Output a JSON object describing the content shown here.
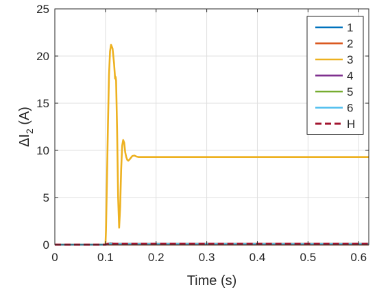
{
  "chart_data": {
    "type": "line",
    "xlabel": "Time (s)",
    "ylabel_parts": {
      "prefix": "ΔI",
      "subscript": "2",
      "suffix": " (A)"
    },
    "xlim": [
      0,
      0.62
    ],
    "ylim": [
      0,
      25
    ],
    "xticks": [
      0,
      0.1,
      0.2,
      0.3,
      0.4,
      0.5,
      0.6
    ],
    "xtick_labels": [
      "0",
      "0.1",
      "0.2",
      "0.3",
      "0.4",
      "0.5",
      "0.6"
    ],
    "yticks": [
      0,
      5,
      10,
      15,
      20,
      25
    ],
    "ytick_labels": [
      "0",
      "5",
      "10",
      "15",
      "20",
      "25"
    ],
    "grid": true,
    "legend_position": "top-right",
    "series": [
      {
        "name": "1",
        "color": "#0072BD",
        "style": "solid",
        "x": [
          0,
          0.1,
          0.62
        ],
        "y": [
          0,
          0,
          0
        ]
      },
      {
        "name": "2",
        "color": "#D95319",
        "style": "solid",
        "x": [
          0,
          0.1,
          0.62
        ],
        "y": [
          0,
          0,
          0
        ]
      },
      {
        "name": "3",
        "color": "#EDB120",
        "style": "solid",
        "x": [
          0,
          0.1,
          0.101,
          0.103,
          0.105,
          0.107,
          0.109,
          0.111,
          0.114,
          0.117,
          0.119,
          0.12,
          0.121,
          0.123,
          0.125,
          0.127,
          0.129,
          0.131,
          0.133,
          0.135,
          0.137,
          0.139,
          0.141,
          0.143,
          0.145,
          0.147,
          0.15,
          0.153,
          0.157,
          0.161,
          0.165,
          0.17,
          0.175,
          0.18,
          0.2,
          0.3,
          0.4,
          0.5,
          0.62
        ],
        "y": [
          0,
          0,
          1.5,
          7,
          13,
          18,
          20.5,
          21.2,
          20.8,
          19.2,
          17.6,
          17.8,
          17.4,
          12,
          5,
          1.8,
          4,
          8,
          10.5,
          11.1,
          10.8,
          9.8,
          9.3,
          9.0,
          8.9,
          9.0,
          9.2,
          9.4,
          9.45,
          9.35,
          9.3,
          9.3,
          9.3,
          9.3,
          9.3,
          9.3,
          9.3,
          9.3,
          9.3
        ]
      },
      {
        "name": "4",
        "color": "#7E2F8E",
        "style": "solid",
        "x": [
          0,
          0.1,
          0.105,
          0.11,
          0.115,
          0.12,
          0.13,
          0.62
        ],
        "y": [
          0,
          0,
          0.1,
          0.15,
          0.12,
          0.1,
          0.1,
          0.1
        ]
      },
      {
        "name": "5",
        "color": "#77AC30",
        "style": "solid",
        "x": [
          0,
          0.1,
          0.105,
          0.11,
          0.115,
          0.12,
          0.13,
          0.62
        ],
        "y": [
          0,
          0,
          0.08,
          0.12,
          0.1,
          0.08,
          0.08,
          0.08
        ]
      },
      {
        "name": "6",
        "color": "#4DBEEE",
        "style": "solid",
        "x": [
          0,
          0.1,
          0.105,
          0.11,
          0.115,
          0.12,
          0.13,
          0.62
        ],
        "y": [
          0,
          0,
          0.05,
          0.08,
          0.06,
          0.05,
          0.05,
          0.05
        ]
      },
      {
        "name": "H",
        "color": "#A2142F",
        "style": "dashed",
        "x": [
          0,
          0.1,
          0.105,
          0.11,
          0.115,
          0.12,
          0.13,
          0.62
        ],
        "y": [
          0,
          0,
          0.1,
          0.15,
          0.12,
          0.1,
          0.1,
          0.1
        ]
      }
    ]
  }
}
